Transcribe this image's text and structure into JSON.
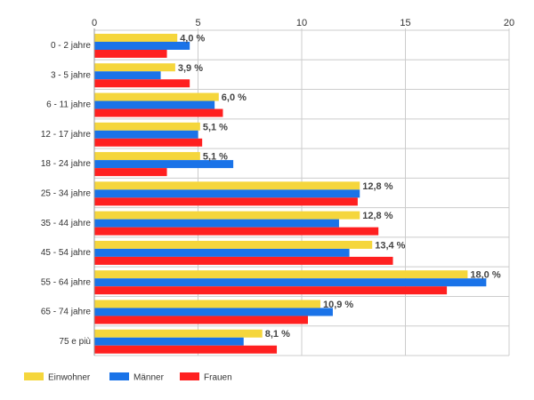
{
  "chart_data": {
    "type": "bar",
    "orientation": "horizontal",
    "title": "",
    "xlabel": "",
    "ylabel": "",
    "xlim": [
      0,
      20
    ],
    "x_ticks": [
      "0",
      "5",
      "10",
      "15",
      "20"
    ],
    "grid": true,
    "legend_position": "bottom-left",
    "categories": [
      "0 - 2 jahre",
      "3 - 5 jahre",
      "6 - 11 jahre",
      "12 - 17 jahre",
      "18 - 24 jahre",
      "25 - 34 jahre",
      "35 - 44 jahre",
      "45 - 54 jahre",
      "55 - 64 jahre",
      "65 - 74 jahre",
      "75 e più"
    ],
    "series": [
      {
        "name": "Einwohner",
        "color": "#f5d63c",
        "values": [
          4.0,
          3.9,
          6.0,
          5.1,
          5.1,
          12.8,
          12.8,
          13.4,
          18.0,
          10.9,
          8.1
        ],
        "labels": [
          "4,0 %",
          "3,9 %",
          "6,0 %",
          "5,1 %",
          "5,1 %",
          "12,8 %",
          "12,8 %",
          "13,4 %",
          "18,0 %",
          "10,9 %",
          "8,1 %"
        ]
      },
      {
        "name": "Männer",
        "color": "#1a73e8",
        "values": [
          4.6,
          3.2,
          5.8,
          5.0,
          6.7,
          12.8,
          11.8,
          12.3,
          18.9,
          11.5,
          7.2
        ]
      },
      {
        "name": "Frauen",
        "color": "#ff2020",
        "values": [
          3.5,
          4.6,
          6.2,
          5.2,
          3.5,
          12.7,
          13.7,
          14.4,
          17.0,
          10.3,
          8.8
        ]
      }
    ]
  }
}
